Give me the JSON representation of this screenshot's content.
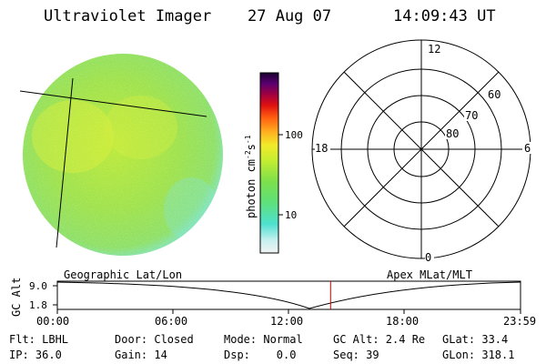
{
  "header": {
    "instrument": "Ultraviolet Imager",
    "date": "27 Aug 07",
    "time": "14:09:43 UT"
  },
  "colorbar": {
    "unit": "photon cm",
    "unit_sup1": "-2",
    "unit_s": "s",
    "unit_sup2": "-1",
    "tick_labels": [
      "100",
      "10"
    ]
  },
  "polar_plot": {
    "clock_labels": [
      "12",
      "18",
      "6",
      "0"
    ],
    "lat_labels": [
      "60",
      "70",
      "80"
    ]
  },
  "timeline": {
    "axis_label": "GC Alt",
    "y_ticks": [
      "9.0",
      "1.8"
    ],
    "left_caption": "Geographic Lat/Lon",
    "right_caption": "Apex MLat/MLT",
    "x_ticks": [
      "00:00",
      "06:00",
      "12:00",
      "18:00",
      "23:59"
    ],
    "current_time_hours": 14.16
  },
  "info": {
    "row1": [
      "Flt: LBHL",
      "Door: Closed",
      "Mode: Normal",
      "GC Alt: 2.4 Re",
      "GLat: 33.4"
    ],
    "row2": [
      "IP: 36.0",
      "Gain: 14",
      "Dsp:    0.0",
      "Seq: 39",
      "GLon: 318.1"
    ]
  },
  "colors": {
    "image_base": "#aee845",
    "image_light": "#dcf03a",
    "image_cyan": "#7fe6d8",
    "marker": "#cc0000"
  }
}
